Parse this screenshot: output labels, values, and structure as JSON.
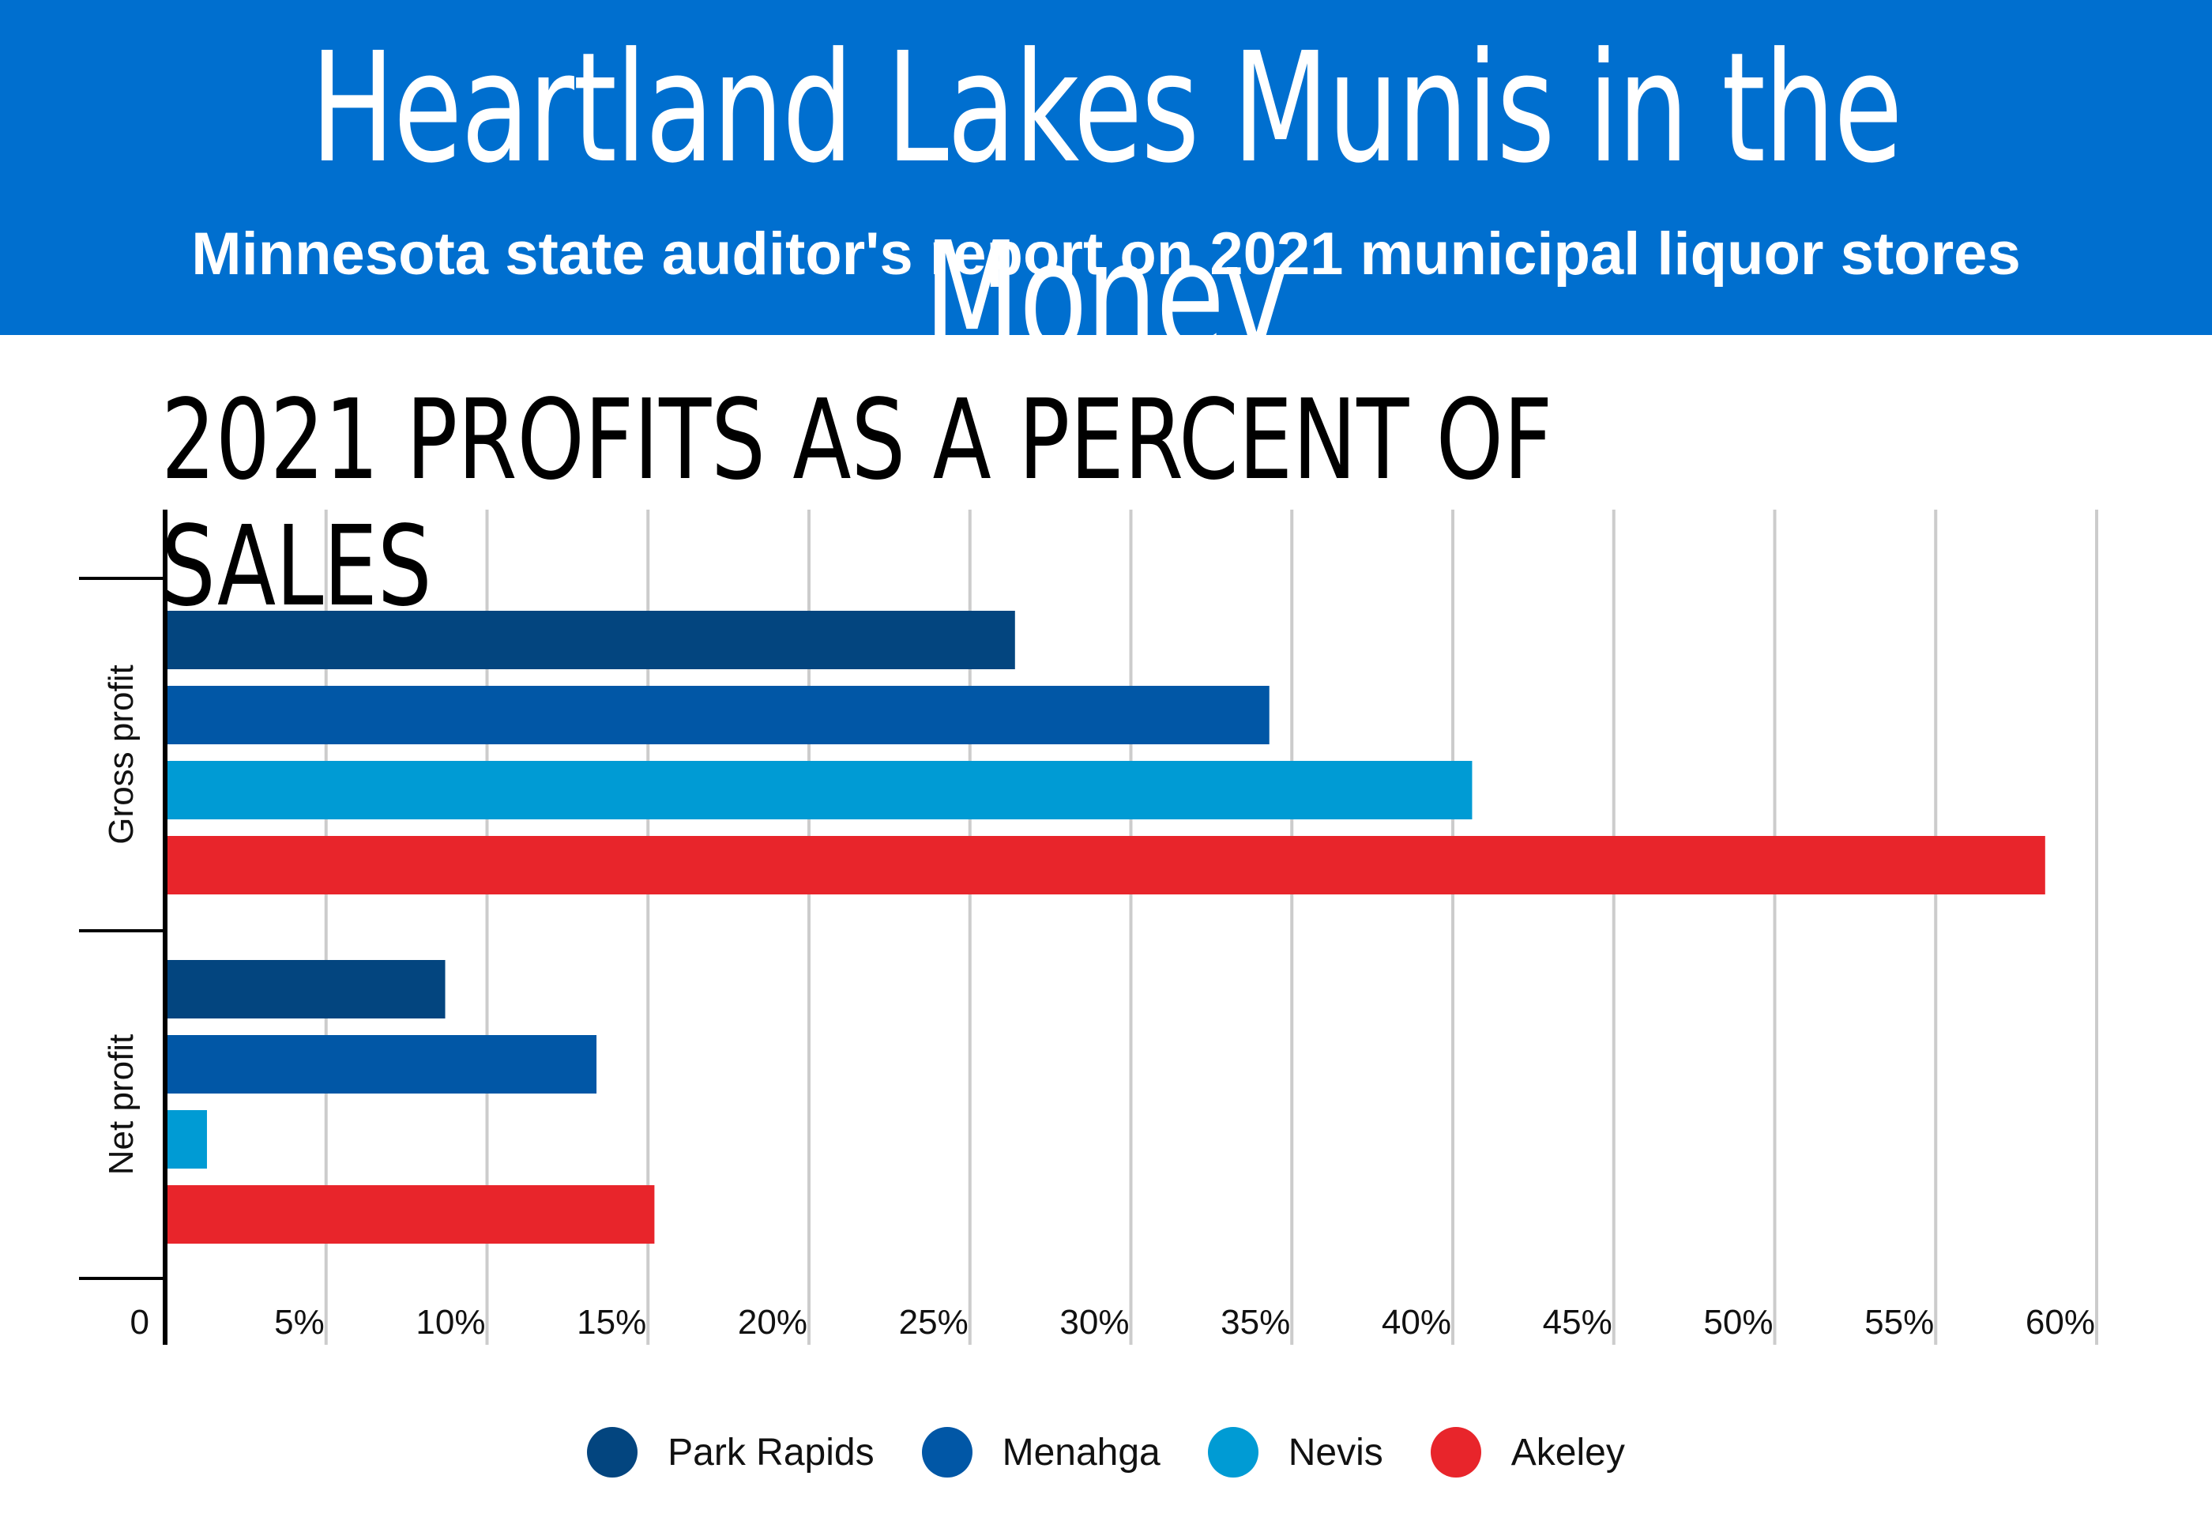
{
  "header": {
    "title": "Heartland Lakes Munis in the Money",
    "subtitle": "Minnesota state auditor's report on 2021 municipal liquor stores"
  },
  "colors": {
    "banner": "#006fcf",
    "grid": "#cccccc",
    "axis": "#000000"
  },
  "chart_data": {
    "type": "bar",
    "orientation": "horizontal",
    "title": "2021 PROFITS AS A PERCENT OF SALES",
    "categories": [
      "Gross profit",
      "Net profit"
    ],
    "xlim": [
      0,
      60
    ],
    "x_ticks": [
      0,
      5,
      10,
      15,
      20,
      25,
      30,
      35,
      40,
      45,
      50,
      55,
      60
    ],
    "x_tick_labels": [
      "0",
      "5%",
      "10%",
      "15%",
      "20%",
      "25%",
      "30%",
      "35%",
      "40%",
      "45%",
      "50%",
      "55%",
      "60%"
    ],
    "grid": true,
    "legend_position": "bottom",
    "series": [
      {
        "name": "Park Rapids",
        "color": "#03457f",
        "values": [
          26.4,
          8.7
        ]
      },
      {
        "name": "Menahga",
        "color": "#0157a6",
        "values": [
          34.3,
          13.4
        ]
      },
      {
        "name": "Nevis",
        "color": "#009bd4",
        "values": [
          40.6,
          1.3
        ]
      },
      {
        "name": "Akeley",
        "color": "#e8252b",
        "values": [
          58.4,
          15.2
        ]
      }
    ]
  }
}
